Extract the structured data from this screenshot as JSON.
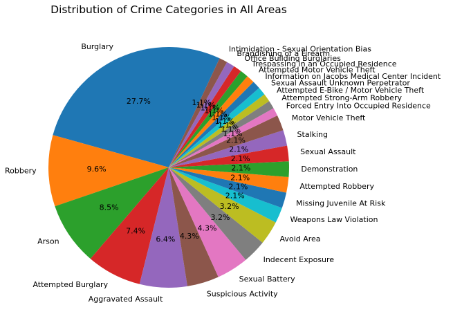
{
  "chart_data": {
    "type": "pie",
    "title": "Distribution of Crime Categories in All Areas",
    "start_angle_deg": 65,
    "direction": "counterclockwise",
    "slices": [
      {
        "label": "Burglary",
        "value": 27.7,
        "pct_label": "27.7%",
        "color": "#1f77b4"
      },
      {
        "label": "Robbery",
        "value": 9.6,
        "pct_label": "9.6%",
        "color": "#ff7f0e"
      },
      {
        "label": "Arson",
        "value": 8.5,
        "pct_label": "8.5%",
        "color": "#2ca02c"
      },
      {
        "label": "Attempted Burglary",
        "value": 7.4,
        "pct_label": "7.4%",
        "color": "#d62728"
      },
      {
        "label": "Aggravated Assault",
        "value": 6.4,
        "pct_label": "6.4%",
        "color": "#9467bd"
      },
      {
        "label": "Suspicious Activity",
        "value": 4.3,
        "pct_label": "4.3%",
        "color": "#8c564b"
      },
      {
        "label": "Sexual Battery",
        "value": 4.3,
        "pct_label": "4.3%",
        "color": "#e377c2"
      },
      {
        "label": "Indecent Exposure",
        "value": 3.2,
        "pct_label": "3.2%",
        "color": "#7f7f7f"
      },
      {
        "label": "Avoid Area",
        "value": 3.2,
        "pct_label": "3.2%",
        "color": "#bcbd22"
      },
      {
        "label": "Weapons Law Violation",
        "value": 2.1,
        "pct_label": "2.1%",
        "color": "#17becf"
      },
      {
        "label": "Missing Juvenile At Risk",
        "value": 2.1,
        "pct_label": "2.1%",
        "color": "#1f77b4"
      },
      {
        "label": "Attempted Robbery",
        "value": 2.1,
        "pct_label": "2.1%",
        "color": "#ff7f0e"
      },
      {
        "label": "Demonstration",
        "value": 2.1,
        "pct_label": "2.1%",
        "color": "#2ca02c"
      },
      {
        "label": "Sexual Assault",
        "value": 2.1,
        "pct_label": "2.1%",
        "color": "#d62728"
      },
      {
        "label": "Stalking",
        "value": 2.1,
        "pct_label": "2.1%",
        "color": "#9467bd"
      },
      {
        "label": "Motor Vehicle Theft",
        "value": 2.1,
        "pct_label": "2.1%",
        "color": "#8c564b"
      },
      {
        "label": "Forced Entry Into Occupied Residence",
        "value": 1.1,
        "pct_label": "1.1%",
        "color": "#e377c2"
      },
      {
        "label": "Attempted Strong-Arm Robbery",
        "value": 1.1,
        "pct_label": "1.1%",
        "color": "#7f7f7f"
      },
      {
        "label": "Attempted E-Bike / Motor Vehicle Theft",
        "value": 1.1,
        "pct_label": "1.1%",
        "color": "#bcbd22"
      },
      {
        "label": "Sexual Assault Unknown Perpetrator",
        "value": 1.1,
        "pct_label": "1.1%",
        "color": "#17becf"
      },
      {
        "label": "Information on Jacobs Medical Center Incident",
        "value": 1.1,
        "pct_label": "1.1%",
        "color": "#1f77b4"
      },
      {
        "label": "Attempted Motor Vehicle Theft",
        "value": 1.1,
        "pct_label": "1.1%",
        "color": "#ff7f0e"
      },
      {
        "label": "Trespassing in an Occupied Residence",
        "value": 1.1,
        "pct_label": "1.1%",
        "color": "#2ca02c"
      },
      {
        "label": "Office Building Burglaries",
        "value": 1.1,
        "pct_label": "1.1%",
        "color": "#d62728"
      },
      {
        "label": "Brandishing of a Firearm",
        "value": 1.1,
        "pct_label": "1.1%",
        "color": "#9467bd"
      },
      {
        "label": "Intimidation - Sexual Orientation Bias",
        "value": 1.1,
        "pct_label": "1.1%",
        "color": "#8c564b"
      }
    ]
  }
}
